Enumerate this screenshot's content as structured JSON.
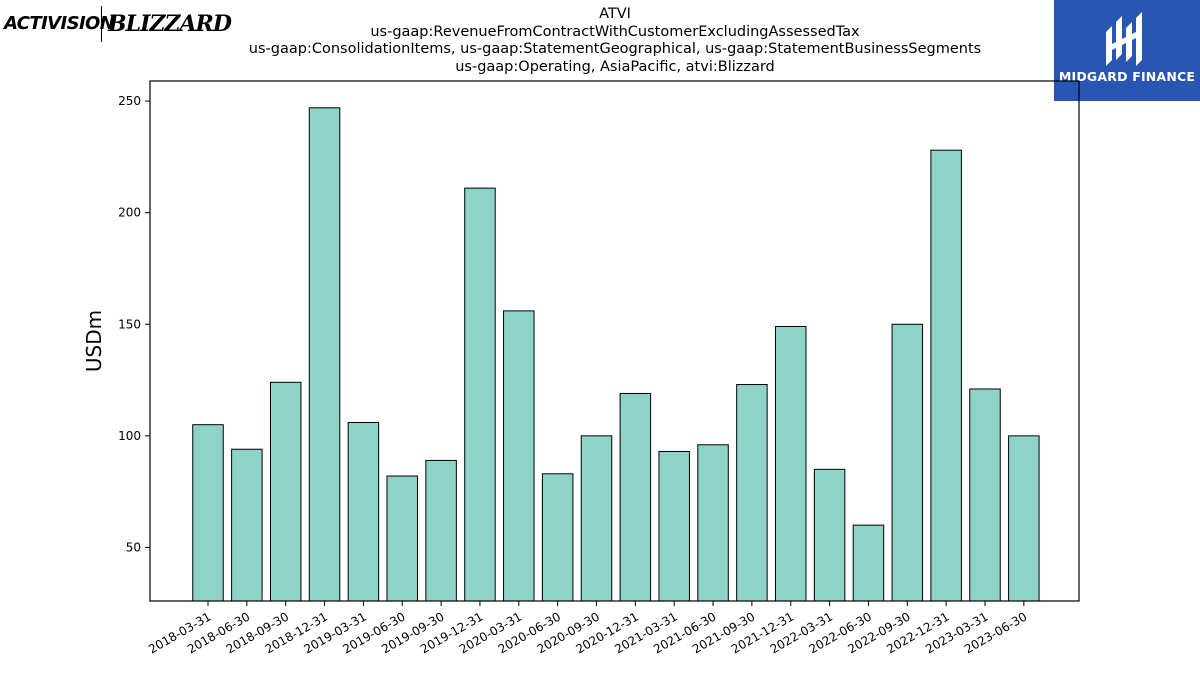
{
  "header": {
    "logo_left_a": "ACTIVISION",
    "logo_left_b": "BLIZZARD",
    "logo_right": "MIDGARD FINANCE"
  },
  "colors": {
    "bar_fill": "#8dd3c7",
    "bar_stroke": "#000000",
    "brand_blue": "#2a56b3"
  },
  "chart_data": {
    "type": "bar",
    "title_lines": [
      "ATVI",
      "us-gaap:RevenueFromContractWithCustomerExcludingAssessedTax",
      "us-gaap:ConsolidationItems, us-gaap:StatementGeographical, us-gaap:StatementBusinessSegments",
      "us-gaap:Operating, AsiaPacific, atvi:Blizzard"
    ],
    "ylabel": "USDm",
    "xlabel": "",
    "ylim": [
      26,
      259
    ],
    "yticks": [
      50,
      100,
      150,
      200,
      250
    ],
    "grid": false,
    "legend": "none",
    "categories": [
      "2018-03-31",
      "2018-06-30",
      "2018-09-30",
      "2018-12-31",
      "2019-03-31",
      "2019-06-30",
      "2019-09-30",
      "2019-12-31",
      "2020-03-31",
      "2020-06-30",
      "2020-09-30",
      "2020-12-31",
      "2021-03-31",
      "2021-06-30",
      "2021-09-30",
      "2021-12-31",
      "2022-03-31",
      "2022-06-30",
      "2022-09-30",
      "2022-12-31",
      "2023-03-31",
      "2023-06-30"
    ],
    "values": [
      105,
      94,
      124,
      247,
      106,
      82,
      89,
      211,
      156,
      83,
      100,
      119,
      93,
      96,
      123,
      149,
      85,
      60,
      150,
      228,
      121,
      100
    ]
  }
}
